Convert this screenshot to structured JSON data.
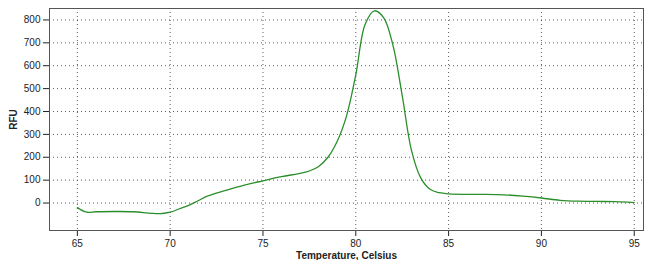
{
  "chart_data": {
    "type": "line",
    "x_label": "Temperature, Celsius",
    "y_label": "RFU",
    "x": [
      65,
      65.5,
      66,
      67,
      68,
      69,
      69.5,
      70,
      70.5,
      71,
      71.5,
      72,
      73,
      74,
      75,
      76,
      77,
      77.5,
      78,
      78.5,
      79,
      79.5,
      80,
      80.5,
      81,
      81.5,
      82,
      82.5,
      83,
      83.5,
      84,
      84.5,
      85,
      86,
      87,
      88,
      89,
      90,
      91,
      92,
      93,
      94,
      95
    ],
    "values": [
      -20,
      -40,
      -38,
      -37,
      -38,
      -45,
      -46,
      -40,
      -25,
      -10,
      10,
      30,
      55,
      78,
      97,
      115,
      130,
      140,
      160,
      200,
      270,
      380,
      560,
      780,
      840,
      810,
      690,
      470,
      230,
      110,
      60,
      45,
      40,
      38,
      38,
      36,
      30,
      22,
      12,
      8,
      7,
      6,
      2
    ],
    "color": "#2a8f2a",
    "xlim": [
      63.5,
      95.5
    ],
    "xticks": [
      65,
      70,
      75,
      80,
      85,
      90,
      95
    ],
    "ylim": [
      -120,
      850
    ],
    "yticks": [
      0,
      100,
      200,
      300,
      400,
      500,
      600,
      700,
      800
    ],
    "grid": true
  }
}
